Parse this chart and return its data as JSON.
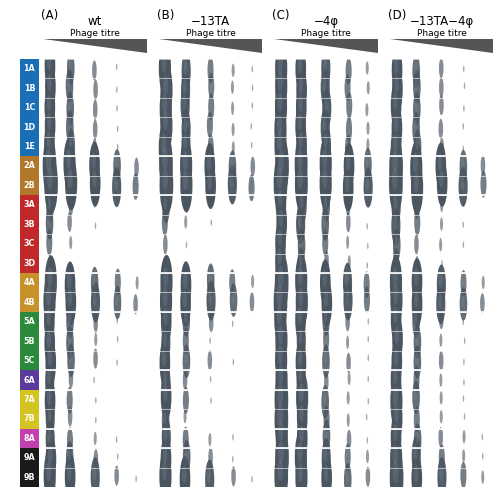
{
  "title_A": "(A)",
  "title_B": "(B)",
  "title_C": "(C)",
  "title_D": "(D)",
  "subtitle_A": "wt",
  "subtitle_B": "−13TA",
  "subtitle_C": "−4φ",
  "subtitle_D": "−13TA−4φ",
  "phage_titre_label": "Phage titre",
  "row_labels": [
    "1A",
    "1B",
    "1C",
    "1D",
    "1E",
    "2A",
    "2B",
    "3A",
    "3B",
    "3C",
    "3D",
    "4A",
    "4B",
    "5A",
    "5B",
    "5C",
    "6A",
    "7A",
    "7B",
    "8A",
    "9A",
    "9B"
  ],
  "row_colors": [
    "#1a6eb5",
    "#1a6eb5",
    "#1a6eb5",
    "#1a6eb5",
    "#1a6eb5",
    "#b07828",
    "#b07828",
    "#c0282a",
    "#c0282a",
    "#c0282a",
    "#c0282a",
    "#c8922a",
    "#c8922a",
    "#2a8a3a",
    "#2a8a3a",
    "#2a8a3a",
    "#5a3a9a",
    "#d4c422",
    "#d4c422",
    "#c040b0",
    "#1a1a1a",
    "#1a1a1a"
  ],
  "agar_bg": "#cccfb8",
  "spot_color": "#4a5560",
  "spot_color_light": "#8a9aaa",
  "figure_bg": "#ffffff",
  "title_fontsize": 8.5,
  "row_label_fontsize": 6.0,
  "spot_sizes_by_row": [
    [
      14,
      10,
      6,
      2,
      0
    ],
    [
      14,
      10,
      6,
      2,
      0
    ],
    [
      14,
      10,
      6,
      2,
      0
    ],
    [
      14,
      10,
      6,
      2,
      0
    ],
    [
      14,
      10,
      6,
      2,
      0
    ],
    [
      18,
      16,
      14,
      10,
      6
    ],
    [
      18,
      16,
      14,
      12,
      8
    ],
    [
      10,
      6,
      2,
      0,
      0
    ],
    [
      10,
      6,
      2,
      0,
      0
    ],
    [
      8,
      4,
      0,
      0,
      0
    ],
    [
      6,
      2,
      0,
      0,
      0
    ],
    [
      16,
      14,
      10,
      8,
      4
    ],
    [
      16,
      14,
      12,
      10,
      6
    ],
    [
      14,
      10,
      6,
      2,
      0
    ],
    [
      14,
      10,
      4,
      2,
      0
    ],
    [
      14,
      10,
      6,
      2,
      0
    ],
    [
      12,
      6,
      2,
      0,
      0
    ],
    [
      14,
      8,
      2,
      0,
      0
    ],
    [
      12,
      6,
      2,
      0,
      0
    ],
    [
      12,
      8,
      4,
      2,
      0
    ],
    [
      14,
      10,
      6,
      2,
      0
    ],
    [
      16,
      14,
      12,
      6,
      2
    ]
  ],
  "spot_sizes_B_by_row": [
    [
      16,
      12,
      8,
      4,
      2
    ],
    [
      16,
      12,
      8,
      4,
      2
    ],
    [
      16,
      12,
      8,
      4,
      2
    ],
    [
      16,
      12,
      8,
      4,
      2
    ],
    [
      16,
      12,
      8,
      4,
      2
    ],
    [
      18,
      16,
      14,
      10,
      6
    ],
    [
      18,
      16,
      14,
      12,
      8
    ],
    [
      10,
      6,
      2,
      0,
      0
    ],
    [
      8,
      4,
      2,
      0,
      0
    ],
    [
      6,
      2,
      0,
      0,
      0
    ],
    [
      4,
      0,
      0,
      0,
      0
    ],
    [
      16,
      14,
      10,
      8,
      4
    ],
    [
      16,
      14,
      12,
      10,
      6
    ],
    [
      14,
      10,
      6,
      2,
      0
    ],
    [
      12,
      8,
      2,
      0,
      0
    ],
    [
      14,
      10,
      6,
      2,
      0
    ],
    [
      12,
      6,
      2,
      0,
      0
    ],
    [
      14,
      8,
      2,
      0,
      0
    ],
    [
      10,
      4,
      0,
      0,
      0
    ],
    [
      12,
      8,
      4,
      2,
      0
    ],
    [
      14,
      10,
      6,
      2,
      0
    ],
    [
      16,
      14,
      12,
      6,
      2
    ]
  ],
  "spot_sizes_C_by_row": [
    [
      16,
      14,
      12,
      8,
      4
    ],
    [
      16,
      14,
      12,
      8,
      4
    ],
    [
      16,
      14,
      12,
      8,
      4
    ],
    [
      16,
      14,
      12,
      8,
      4
    ],
    [
      16,
      14,
      12,
      8,
      4
    ],
    [
      18,
      17,
      16,
      14,
      10
    ],
    [
      18,
      17,
      16,
      14,
      12
    ],
    [
      14,
      12,
      10,
      6,
      2
    ],
    [
      14,
      12,
      10,
      6,
      2
    ],
    [
      14,
      10,
      8,
      4,
      2
    ],
    [
      14,
      10,
      6,
      4,
      2
    ],
    [
      18,
      16,
      14,
      12,
      8
    ],
    [
      18,
      16,
      14,
      12,
      8
    ],
    [
      16,
      14,
      10,
      6,
      2
    ],
    [
      16,
      12,
      8,
      4,
      2
    ],
    [
      16,
      14,
      10,
      6,
      2
    ],
    [
      16,
      12,
      6,
      4,
      2
    ],
    [
      18,
      16,
      10,
      4,
      2
    ],
    [
      18,
      14,
      8,
      4,
      2
    ],
    [
      16,
      14,
      10,
      6,
      2
    ],
    [
      18,
      16,
      12,
      8,
      4
    ],
    [
      18,
      16,
      14,
      10,
      6
    ]
  ],
  "spot_sizes_D_by_row": [
    [
      14,
      10,
      6,
      2,
      0
    ],
    [
      14,
      10,
      6,
      2,
      0
    ],
    [
      14,
      10,
      6,
      2,
      0
    ],
    [
      14,
      10,
      6,
      2,
      0
    ],
    [
      14,
      10,
      6,
      2,
      0
    ],
    [
      18,
      16,
      14,
      10,
      6
    ],
    [
      18,
      16,
      14,
      12,
      8
    ],
    [
      12,
      8,
      4,
      2,
      0
    ],
    [
      12,
      8,
      4,
      2,
      0
    ],
    [
      10,
      6,
      4,
      2,
      0
    ],
    [
      8,
      4,
      2,
      0,
      0
    ],
    [
      16,
      14,
      12,
      8,
      4
    ],
    [
      16,
      14,
      12,
      10,
      6
    ],
    [
      14,
      10,
      6,
      2,
      0
    ],
    [
      14,
      10,
      4,
      2,
      0
    ],
    [
      14,
      10,
      6,
      2,
      0
    ],
    [
      14,
      8,
      4,
      2,
      0
    ],
    [
      16,
      10,
      4,
      2,
      0
    ],
    [
      14,
      8,
      4,
      2,
      0
    ],
    [
      14,
      10,
      6,
      4,
      2
    ],
    [
      16,
      12,
      8,
      4,
      2
    ],
    [
      18,
      14,
      12,
      8,
      4
    ]
  ]
}
